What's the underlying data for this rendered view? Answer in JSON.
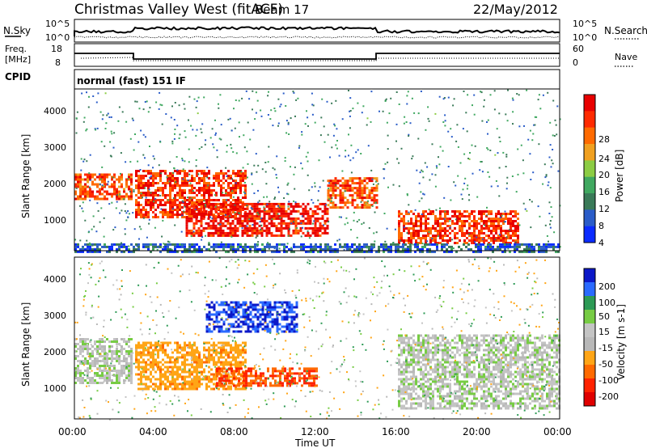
{
  "header": {
    "title": "Christmas Valley West (fitACF)",
    "beam": "Beam 17",
    "date": "22/May/2012"
  },
  "nsky": {
    "label": "N.Sky",
    "right_label": "N.Search",
    "left_ticks": [
      "10^5",
      "10^0"
    ],
    "right_ticks": [
      "10^5",
      "10^0"
    ]
  },
  "freq": {
    "label_line1": "Freq.",
    "label_line2": "[MHz]",
    "right_label": "Nave",
    "left_ticks": [
      "18",
      "8"
    ],
    "right_ticks": [
      "60",
      "0"
    ]
  },
  "cpid": {
    "label": "CPID",
    "value": "normal (fast) 151 IF"
  },
  "colors": {
    "power_scale": [
      "#0a2bff",
      "#2a5cc8",
      "#3a7a58",
      "#40a860",
      "#8ccc44",
      "#f0a020",
      "#ff6a00",
      "#ff2a00",
      "#e80000"
    ],
    "velocity_scale": [
      "#0b18c8",
      "#2a6aff",
      "#2d9a55",
      "#77cc44",
      "#c4c4c4",
      "#b8b8b8",
      "#ffa516",
      "#ff6a00",
      "#ff2200",
      "#e00000"
    ]
  },
  "chart_data": [
    {
      "type": "heatmap",
      "ylabel": "Slant Range [km]",
      "ylim": [
        200,
        4600
      ],
      "yticks": [
        "4000",
        "3000",
        "2000",
        "1000"
      ],
      "xlim": [
        "00:00",
        "24:00"
      ],
      "colorbar_label": "Power [dB]",
      "colorbar_ticks": [
        "28",
        "24",
        "20",
        "16",
        "12",
        "8",
        "4"
      ],
      "regions": [
        {
          "t0": 0.0,
          "t1": 2.8,
          "r0": 1600,
          "r1": 2300,
          "level": 24
        },
        {
          "t0": 3.0,
          "t1": 8.5,
          "r0": 1100,
          "r1": 2400,
          "level": 26
        },
        {
          "t0": 5.5,
          "t1": 12.5,
          "r0": 600,
          "r1": 1500,
          "level": 28
        },
        {
          "t0": 12.5,
          "t1": 15.0,
          "r0": 1400,
          "r1": 2200,
          "level": 24
        },
        {
          "t0": 16.0,
          "t1": 22.0,
          "r0": 400,
          "r1": 1300,
          "level": 26
        },
        {
          "t0": 0.0,
          "t1": 24.0,
          "r0": 200,
          "r1": 400,
          "level": 6
        }
      ]
    },
    {
      "type": "heatmap",
      "ylabel": "Slant Range [km]",
      "xlabel": "Time UT",
      "ylim": [
        200,
        4600
      ],
      "yticks": [
        "4000",
        "3000",
        "2000",
        "1000"
      ],
      "xlim": [
        "00:00",
        "24:00"
      ],
      "xticks": [
        "00:00",
        "04:00",
        "08:00",
        "12:00",
        "16:00",
        "20:00",
        "00:00"
      ],
      "colorbar_label": "Velocity [m s-1]",
      "colorbar_ticks": [
        "200",
        "100",
        "50",
        "15",
        "-15",
        "-50",
        "-100",
        "-200"
      ],
      "regions": [
        {
          "t0": 0.0,
          "t1": 2.8,
          "r0": 1200,
          "r1": 2400,
          "level": 0
        },
        {
          "t0": 3.0,
          "t1": 8.5,
          "r0": 1000,
          "r1": 2300,
          "level": -60
        },
        {
          "t0": 6.5,
          "t1": 11.0,
          "r0": 2600,
          "r1": 3400,
          "level": 150
        },
        {
          "t0": 7.0,
          "t1": 12.0,
          "r0": 1100,
          "r1": 1600,
          "level": -150
        },
        {
          "t0": 16.0,
          "t1": 24.0,
          "r0": 500,
          "r1": 2500,
          "level": 0
        }
      ]
    }
  ]
}
